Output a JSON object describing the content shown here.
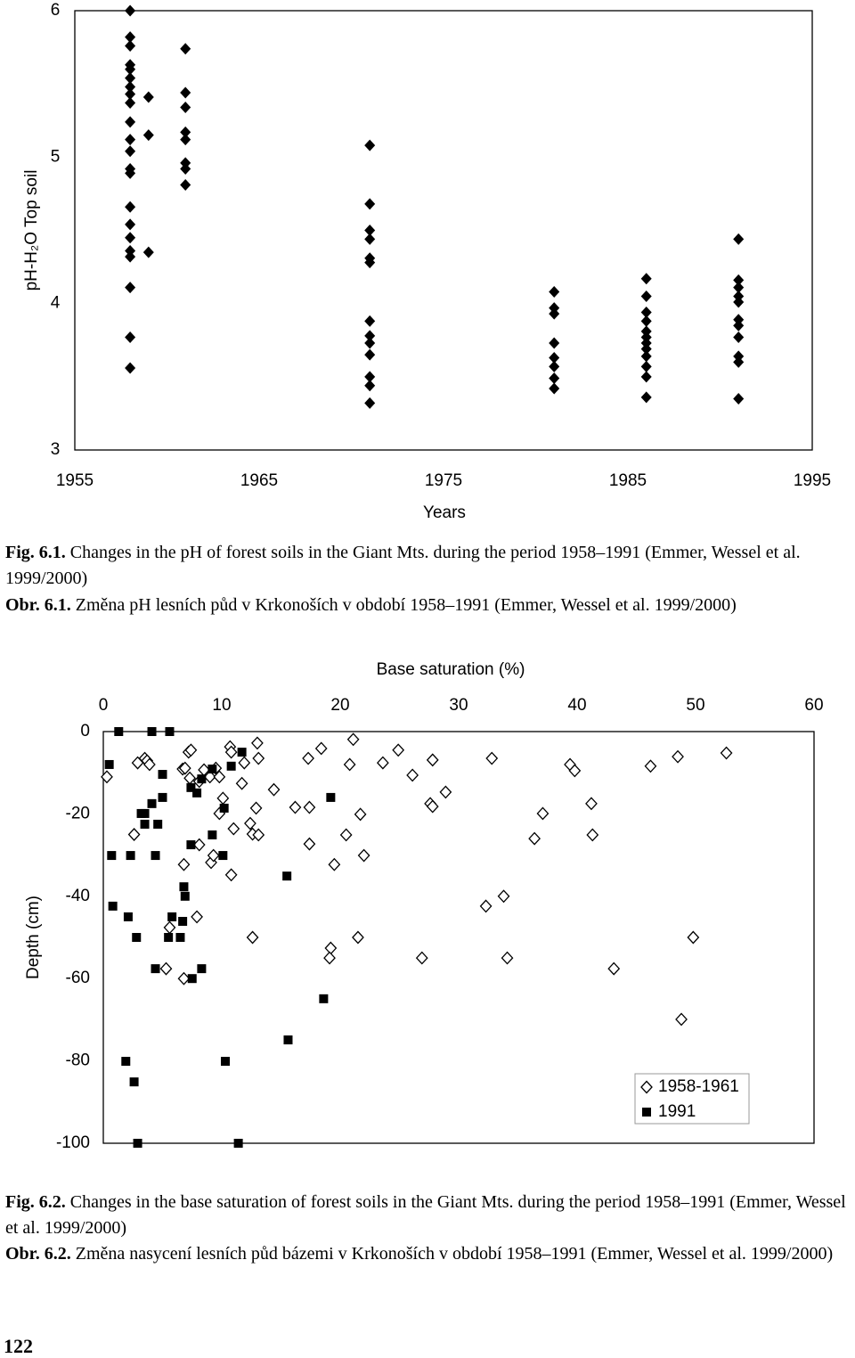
{
  "chart_data": [
    {
      "type": "scatter",
      "y_label": "pH-H₂O Top soil",
      "x_label": "Years",
      "color": "#000000",
      "marker": "diamond",
      "x": [
        1958,
        1958,
        1958,
        1958,
        1958,
        1958,
        1958,
        1958,
        1958,
        1958,
        1958,
        1958,
        1958,
        1958,
        1958,
        1958,
        1958,
        1958,
        1958,
        1958,
        1958,
        1958,
        1959,
        1959,
        1959,
        1961,
        1961,
        1961,
        1961,
        1961,
        1961,
        1961,
        1961,
        1971,
        1971,
        1971,
        1971,
        1971,
        1971,
        1971,
        1971,
        1971,
        1971,
        1971,
        1971,
        1971,
        1981,
        1981,
        1981,
        1981,
        1981,
        1981,
        1981,
        1981,
        1986,
        1986,
        1986,
        1986,
        1986,
        1986,
        1986,
        1986,
        1986,
        1986,
        1986,
        1986,
        1991,
        1991,
        1991,
        1991,
        1991,
        1991,
        1991,
        1991,
        1991,
        1991,
        1991
      ],
      "values": [
        6.0,
        5.82,
        5.76,
        5.63,
        5.6,
        5.54,
        5.48,
        5.43,
        5.37,
        5.24,
        5.12,
        5.04,
        4.92,
        4.89,
        4.66,
        4.54,
        4.45,
        4.36,
        4.32,
        4.11,
        3.77,
        3.56,
        5.41,
        5.15,
        4.35,
        5.74,
        5.44,
        5.34,
        5.17,
        5.12,
        4.96,
        4.92,
        4.81,
        5.08,
        4.68,
        4.5,
        4.44,
        4.31,
        4.28,
        3.88,
        3.78,
        3.73,
        3.65,
        3.5,
        3.44,
        3.32,
        4.08,
        3.97,
        3.93,
        3.73,
        3.63,
        3.57,
        3.49,
        3.42,
        4.17,
        4.05,
        3.94,
        3.88,
        3.81,
        3.77,
        3.73,
        3.69,
        3.64,
        3.57,
        3.5,
        3.36,
        4.44,
        4.16,
        4.11,
        4.05,
        4.01,
        3.89,
        3.85,
        3.77,
        3.64,
        3.6,
        3.35
      ],
      "xlim": [
        1955,
        1995
      ],
      "ylim": [
        3,
        6
      ],
      "xticks": [
        1955,
        1965,
        1975,
        1985,
        1995
      ],
      "yticks": [
        3,
        4,
        5,
        6
      ]
    },
    {
      "type": "scatter",
      "title": "Base saturation (%)",
      "y_label": "Depth (cm)",
      "x_axis_position": "top",
      "legend": "lower right",
      "series": [
        {
          "name": "1958-1961",
          "color": "#000000",
          "marker": "open-diamond",
          "x": [
            0.3,
            2.6,
            2.9,
            3.5,
            3.7,
            3.9,
            7.2,
            7.4,
            6.7,
            6.9,
            7.3,
            6.8,
            8.1,
            8.5,
            9.0,
            9.5,
            9.8,
            9.8,
            10.1,
            9.1,
            9.3,
            8.1,
            10.7,
            10.8,
            11.9,
            11.0,
            13.0,
            13.1,
            11.7,
            12.4,
            12.6,
            12.9,
            13.1,
            14.4,
            10.8,
            12.6,
            5.6,
            7.9,
            5.3,
            6.8,
            17.3,
            18.4,
            16.2,
            17.4,
            17.4,
            19.5,
            20.5,
            20.8,
            21.1,
            21.7,
            22.0,
            23.6,
            24.9,
            26.1,
            27.8,
            27.6,
            27.8,
            28.9,
            21.5,
            19.2,
            19.1,
            26.9,
            32.8,
            32.3,
            33.8,
            34.1,
            36.4,
            37.1,
            39.4,
            39.8,
            41.2,
            41.3,
            43.1,
            46.2,
            48.5,
            52.6,
            49.8,
            48.8
          ],
          "values": [
            -11.0,
            -25.0,
            -7.6,
            -6.5,
            -7.1,
            -8.0,
            -5.0,
            -4.5,
            -9.1,
            -8.9,
            -11.3,
            -32.3,
            -12.1,
            -9.3,
            -11.0,
            -8.9,
            -11.0,
            -19.9,
            -16.2,
            -31.8,
            -30.1,
            -27.5,
            -3.7,
            -5.0,
            -7.6,
            -23.6,
            -2.8,
            -6.5,
            -12.6,
            -22.3,
            -24.9,
            -18.6,
            -25.1,
            -14.1,
            -34.8,
            -50.0,
            -47.6,
            -45.0,
            -57.6,
            -60.0,
            -6.5,
            -4.1,
            -18.4,
            -18.4,
            -27.3,
            -32.3,
            -25.1,
            -8.0,
            -1.9,
            -20.1,
            -30.1,
            -7.6,
            -4.5,
            -10.6,
            -6.9,
            -17.5,
            -18.2,
            -14.7,
            -50.0,
            -52.6,
            -55.0,
            -55.0,
            -6.5,
            -42.4,
            -40.0,
            -55.0,
            -26.0,
            -19.9,
            -8.0,
            -9.5,
            -17.5,
            -25.1,
            -57.6,
            -8.4,
            -6.1,
            -5.2,
            -50.0,
            -69.9
          ]
        },
        {
          "name": "1991",
          "color": "#000000",
          "marker": "square",
          "x": [
            1.3,
            4.1,
            5.6,
            0.5,
            5.0,
            3.2,
            3.5,
            4.1,
            5.0,
            3.5,
            4.6,
            0.7,
            2.3,
            4.4,
            7.4,
            7.4,
            7.9,
            8.3,
            9.2,
            10.8,
            11.7,
            10.2,
            9.2,
            10.1,
            6.8,
            6.9,
            0.8,
            2.1,
            5.8,
            6.7,
            2.8,
            5.5,
            6.5,
            4.4,
            8.3,
            7.5,
            15.5,
            19.2,
            18.6,
            15.6,
            1.9,
            10.3,
            2.6,
            2.9,
            11.4
          ],
          "values": [
            0,
            0,
            0,
            -8.0,
            -10.4,
            -19.9,
            -19.9,
            -17.5,
            -16.0,
            -22.5,
            -22.5,
            -30.1,
            -30.1,
            -30.1,
            -27.5,
            -13.6,
            -14.9,
            -11.5,
            -9.1,
            -8.4,
            -5.0,
            -18.6,
            -25.1,
            -30.1,
            -37.7,
            -40.0,
            -42.4,
            -45.0,
            -45.0,
            -46.1,
            -50.0,
            -50.0,
            -50.0,
            -57.6,
            -57.6,
            -60.0,
            -35.1,
            -16.0,
            -64.9,
            -74.9,
            -80.1,
            -80.1,
            -85.1,
            -100,
            -100
          ]
        }
      ],
      "xlim": [
        0,
        60
      ],
      "ylim": [
        -100,
        0
      ],
      "xticks": [
        0,
        10,
        20,
        30,
        40,
        50,
        60
      ],
      "yticks": [
        0,
        -20,
        -40,
        -60,
        -80,
        -100
      ]
    }
  ],
  "captions": [
    {
      "label": "Fig. 6.1.",
      "text": "Changes in the pH of forest soils in the Giant Mts. during the period 1958–1991 (Emmer, Wessel et al. 1999/2000)"
    },
    {
      "label": "Obr. 6.1.",
      "text": "Změna pH lesních půd v Krkonoších v období 1958–1991 (Emmer, Wessel et al. 1999/2000)"
    },
    {
      "label": "Fig. 6.2.",
      "text": "Changes in the base saturation of forest soils in the Giant Mts. during the period 1958–1991 (Emmer, Wessel et al. 1999/2000)"
    },
    {
      "label": "Obr. 6.2.",
      "text": "Změna nasycení lesních půd bázemi v Krkonoších v období 1958–1991 (Emmer, Wessel et al. 1999/2000)"
    }
  ],
  "page_number": "122"
}
